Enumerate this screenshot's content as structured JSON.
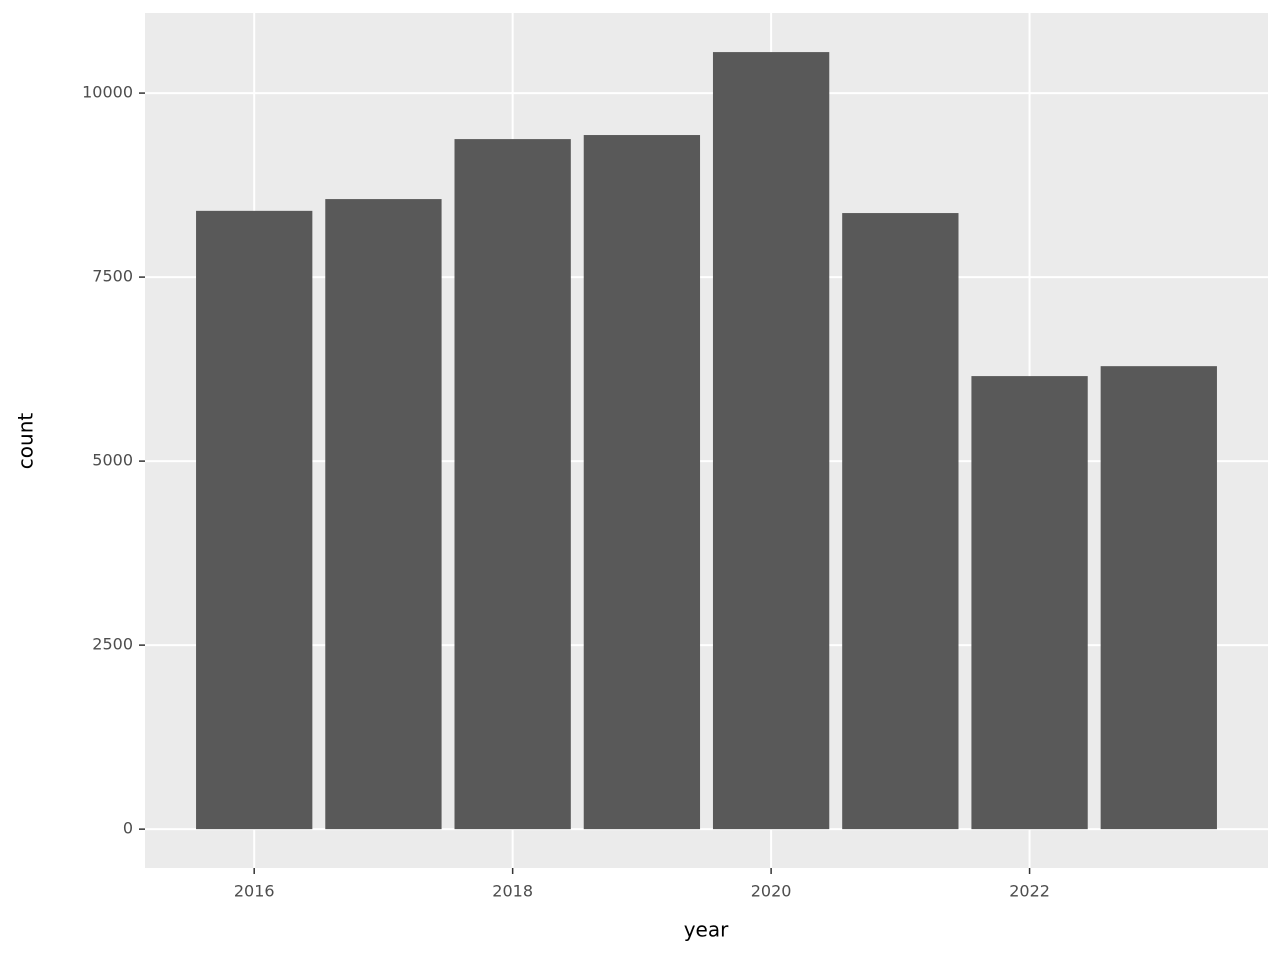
{
  "chart_data": {
    "type": "bar",
    "x_label": "year",
    "y_label": "count",
    "x": [
      2016,
      2017,
      2018,
      2019,
      2020,
      2021,
      2022,
      2023
    ],
    "values": [
      8400,
      8560,
      9375,
      9430,
      10557,
      8370,
      6155,
      6290
    ],
    "color": "#595959",
    "xlim": [
      2015.155,
      2023.845
    ],
    "xticks": [
      2016,
      2018,
      2020,
      2022
    ],
    "ylim": [
      -528,
      11088
    ],
    "yticks": [
      0,
      2500,
      5000,
      7500,
      10000
    ],
    "grid": true
  }
}
